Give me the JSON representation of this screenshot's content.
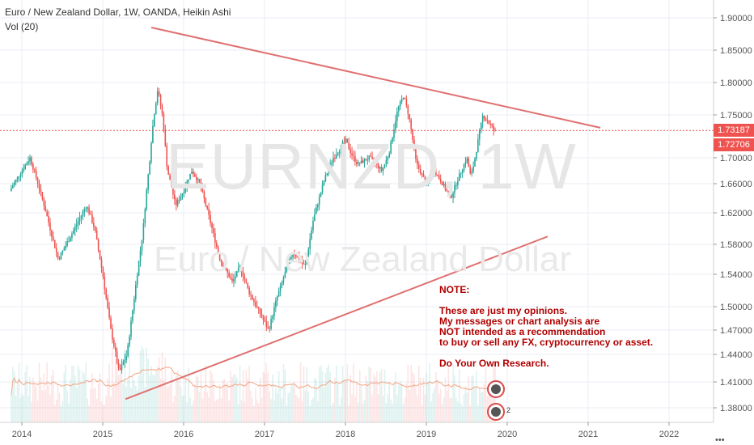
{
  "header": {
    "symbol_line": "Euro / New Zealand Dollar, 1W, OANDA, Heikin Ashi",
    "indicator_line": "Vol (20)"
  },
  "watermark": {
    "ticker": "EURNZD, 1W",
    "name": "Euro / New Zealand Dollar"
  },
  "note": {
    "title": "NOTE:",
    "lines": [
      "These are just my opinions.",
      "My messages or chart analysis are",
      "NOT intended as a recommendation",
      "to buy or sell any FX, cryptocurrency or asset."
    ],
    "closing": "Do Your Own Research."
  },
  "price_tags": {
    "last": "1.73187",
    "close": "1.72706"
  },
  "badges": {
    "count_label": "2"
  },
  "more_button": "•••",
  "colors": {
    "up": "#26a69a",
    "down": "#ef5350",
    "trendline": "#e07070",
    "last_price": "#ef5350",
    "note_text": "#b00000",
    "vol_ma": "#f4a582"
  },
  "chart_data": {
    "type": "candlestick",
    "title": "Euro / New Zealand Dollar, 1W, OANDA, Heikin Ashi",
    "x_ticks": [
      "2014",
      "2015",
      "2016",
      "2017",
      "2018",
      "2019",
      "2020",
      "2021",
      "2022"
    ],
    "y_ticks": [
      "1.90000",
      "1.85000",
      "1.80000",
      "1.75000",
      "1.70000",
      "1.66000",
      "1.62000",
      "1.58000",
      "1.54000",
      "1.50000",
      "1.47000",
      "1.44000",
      "1.41000",
      "1.38000"
    ],
    "y_tick_values": [
      1.9,
      1.85,
      1.8,
      1.75,
      1.7,
      1.66,
      1.62,
      1.58,
      1.54,
      1.5,
      1.47,
      1.44,
      1.41,
      1.38
    ],
    "xlim": [
      2013.8,
      2022.6
    ],
    "ylim_note": "nonlinear price axis; ticks as printed",
    "price_path": [
      {
        "t": 2013.85,
        "p": 1.65
      },
      {
        "t": 2014.0,
        "p": 1.68
      },
      {
        "t": 2014.1,
        "p": 1.7
      },
      {
        "t": 2014.2,
        "p": 1.66
      },
      {
        "t": 2014.3,
        "p": 1.62
      },
      {
        "t": 2014.45,
        "p": 1.56
      },
      {
        "t": 2014.55,
        "p": 1.58
      },
      {
        "t": 2014.7,
        "p": 1.61
      },
      {
        "t": 2014.8,
        "p": 1.63
      },
      {
        "t": 2014.9,
        "p": 1.6
      },
      {
        "t": 2015.0,
        "p": 1.54
      },
      {
        "t": 2015.1,
        "p": 1.47
      },
      {
        "t": 2015.2,
        "p": 1.42
      },
      {
        "t": 2015.3,
        "p": 1.44
      },
      {
        "t": 2015.4,
        "p": 1.52
      },
      {
        "t": 2015.5,
        "p": 1.6
      },
      {
        "t": 2015.6,
        "p": 1.72
      },
      {
        "t": 2015.68,
        "p": 1.79
      },
      {
        "t": 2015.75,
        "p": 1.74
      },
      {
        "t": 2015.8,
        "p": 1.68
      },
      {
        "t": 2015.9,
        "p": 1.63
      },
      {
        "t": 2016.0,
        "p": 1.65
      },
      {
        "t": 2016.1,
        "p": 1.68
      },
      {
        "t": 2016.2,
        "p": 1.66
      },
      {
        "t": 2016.3,
        "p": 1.62
      },
      {
        "t": 2016.45,
        "p": 1.56
      },
      {
        "t": 2016.6,
        "p": 1.53
      },
      {
        "t": 2016.7,
        "p": 1.55
      },
      {
        "t": 2016.8,
        "p": 1.52
      },
      {
        "t": 2016.95,
        "p": 1.49
      },
      {
        "t": 2017.05,
        "p": 1.47
      },
      {
        "t": 2017.15,
        "p": 1.51
      },
      {
        "t": 2017.25,
        "p": 1.54
      },
      {
        "t": 2017.35,
        "p": 1.57
      },
      {
        "t": 2017.5,
        "p": 1.55
      },
      {
        "t": 2017.6,
        "p": 1.61
      },
      {
        "t": 2017.75,
        "p": 1.67
      },
      {
        "t": 2017.85,
        "p": 1.7
      },
      {
        "t": 2018.0,
        "p": 1.72
      },
      {
        "t": 2018.15,
        "p": 1.69
      },
      {
        "t": 2018.3,
        "p": 1.7
      },
      {
        "t": 2018.45,
        "p": 1.68
      },
      {
        "t": 2018.55,
        "p": 1.71
      },
      {
        "t": 2018.65,
        "p": 1.76
      },
      {
        "t": 2018.72,
        "p": 1.78
      },
      {
        "t": 2018.8,
        "p": 1.74
      },
      {
        "t": 2018.88,
        "p": 1.69
      },
      {
        "t": 2019.0,
        "p": 1.66
      },
      {
        "t": 2019.1,
        "p": 1.68
      },
      {
        "t": 2019.2,
        "p": 1.66
      },
      {
        "t": 2019.3,
        "p": 1.64
      },
      {
        "t": 2019.4,
        "p": 1.67
      },
      {
        "t": 2019.5,
        "p": 1.7
      },
      {
        "t": 2019.55,
        "p": 1.67
      },
      {
        "t": 2019.62,
        "p": 1.71
      },
      {
        "t": 2019.7,
        "p": 1.75
      },
      {
        "t": 2019.78,
        "p": 1.74
      },
      {
        "t": 2019.85,
        "p": 1.73
      }
    ],
    "trendlines": [
      {
        "name": "resistance",
        "from": {
          "t": 2015.6,
          "p": 1.885
        },
        "to": {
          "t": 2021.15,
          "p": 1.735
        }
      },
      {
        "name": "support",
        "from": {
          "t": 2015.28,
          "p": 1.39
        },
        "to": {
          "t": 2020.5,
          "p": 1.59
        }
      }
    ],
    "last_price": 1.73187,
    "close_price": 1.72706
  }
}
